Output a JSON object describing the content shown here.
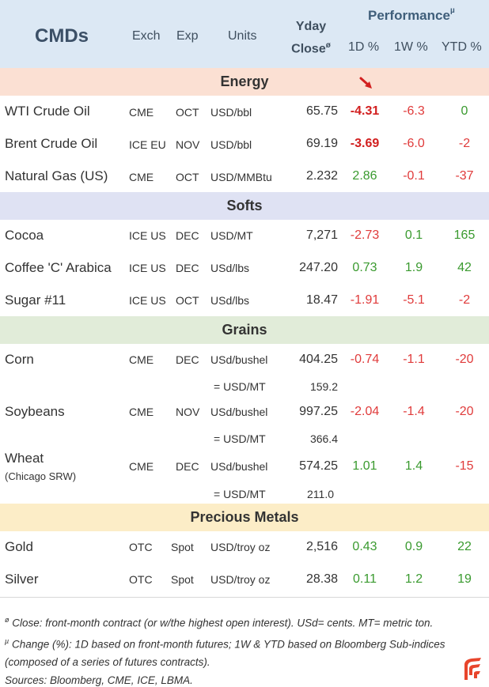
{
  "header": {
    "title": "CMDs",
    "exch": "Exch",
    "exp": "Exp",
    "units": "Units",
    "yday_line1": "Yday",
    "yday_line2": "Close",
    "yday_mark": "ø",
    "performance": "Performance",
    "performance_mark": "µ",
    "col_1d": "1D %",
    "col_1w": "1W %",
    "col_ytd": "YTD %"
  },
  "sections": {
    "energy": "Energy",
    "softs": "Softs",
    "grains": "Grains",
    "metals": "Precious Metals"
  },
  "energy": [
    {
      "name": "WTI Crude Oil",
      "exch": "CME",
      "exp": "OCT",
      "units": "USD/bbl",
      "close": "65.75",
      "d1": "-4.31",
      "w1": "-6.3",
      "ytd": "0"
    },
    {
      "name": "Brent Crude Oil",
      "exch": "ICE EU",
      "exp": "NOV",
      "units": "USD/bbl",
      "close": "69.19",
      "d1": "-3.69",
      "w1": "-6.0",
      "ytd": "-2"
    },
    {
      "name": "Natural Gas (US)",
      "exch": "CME",
      "exp": "OCT",
      "units": "USD/MMBtu",
      "close": "2.232",
      "d1": "2.86",
      "w1": "-0.1",
      "ytd": "-37"
    }
  ],
  "softs": [
    {
      "name": "Cocoa",
      "exch": "ICE US",
      "exp": "DEC",
      "units": "USD/MT",
      "close": "7,271",
      "d1": "-2.73",
      "w1": "0.1",
      "ytd": "165"
    },
    {
      "name": "Coffee 'C' Arabica",
      "exch": "ICE US",
      "exp": "DEC",
      "units": "USd/lbs",
      "close": "247.20",
      "d1": "0.73",
      "w1": "1.9",
      "ytd": "42"
    },
    {
      "name": "Sugar #11",
      "exch": "ICE US",
      "exp": "OCT",
      "units": "USd/lbs",
      "close": "18.47",
      "d1": "-1.91",
      "w1": "-5.1",
      "ytd": "-2"
    }
  ],
  "grains": [
    {
      "name": "Corn",
      "exch": "CME",
      "exp": "DEC",
      "units": "USd/bushel",
      "close": "404.25",
      "d1": "-0.74",
      "w1": "-1.1",
      "ytd": "-20",
      "conv_units": "= USD/MT",
      "conv_value": "159.2"
    },
    {
      "name": "Soybeans",
      "exch": "CME",
      "exp": "NOV",
      "units": "USd/bushel",
      "close": "997.25",
      "d1": "-2.04",
      "w1": "-1.4",
      "ytd": "-20",
      "conv_units": "= USD/MT",
      "conv_value": "366.4"
    },
    {
      "name": "Wheat",
      "sub": "(Chicago SRW)",
      "exch": "CME",
      "exp": "DEC",
      "units": "USd/bushel",
      "close": "574.25",
      "d1": "1.01",
      "w1": "1.4",
      "ytd": "-15",
      "conv_units": "= USD/MT",
      "conv_value": "211.0"
    }
  ],
  "metals": [
    {
      "name": "Gold",
      "exch": "OTC",
      "exp": "Spot",
      "units": "USD/troy oz",
      "close": "2,516",
      "d1": "0.43",
      "w1": "0.9",
      "ytd": "22"
    },
    {
      "name": "Silver",
      "exch": "OTC",
      "exp": "Spot",
      "units": "USD/troy oz",
      "close": "28.38",
      "d1": "0.11",
      "w1": "1.2",
      "ytd": "19"
    }
  ],
  "footnotes": {
    "mark1": "ø",
    "line1": " Close: front-month contract (or w/the highest open interest). USd= cents. MT= metric ton.",
    "mark2": "µ",
    "line2": " Change (%): 1D based on front-month futures; 1W & YTD based on Bloomberg Sub-indices (composed of a series of futures contracts).",
    "line3": "Sources: Bloomberg, CME, ICE, LBMA."
  },
  "icons": {
    "trend_arrow": "arrow-down-right-icon",
    "logo": "brand-logo-icon"
  },
  "colors": {
    "header_bg": "#dce8f4",
    "energy_bg": "#fbe0d3",
    "softs_bg": "#dfe2f3",
    "grains_bg": "#e1ecd9",
    "metals_bg": "#fcedc7",
    "negative": "#e03b3b",
    "positive": "#3a9a2f",
    "logo": "#e8452c"
  }
}
